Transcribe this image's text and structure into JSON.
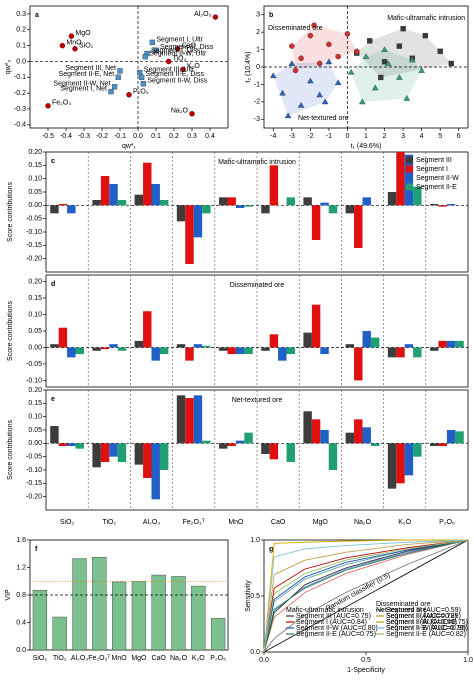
{
  "chart_data": [
    {
      "type": "scatter",
      "panel": "a",
      "xlabel": "qw*₁",
      "ylabel": "qw*₂",
      "xlim": [
        -0.6,
        0.5
      ],
      "ylim": [
        -0.42,
        0.35
      ],
      "xticks": [
        -0.5,
        -0.4,
        -0.3,
        -0.2,
        -0.1,
        {
          "value": 0,
          "label": "0.0"
        },
        0.1,
        0.2,
        0.3,
        0.4
      ],
      "yticks": [
        -0.4,
        -0.3,
        -0.2,
        -0.1,
        {
          "value": 0,
          "label": "0.0"
        },
        0.1,
        0.2,
        0.3
      ],
      "zero_lines": true,
      "series": [
        {
          "color": "#c00000",
          "marker": "circle",
          "labels": [
            "Al₂O₃",
            "MgO",
            "SiO₂",
            "MnO",
            "CaO",
            "TiO₂",
            "K₂O",
            "Na₂O",
            "Fe₂O₃",
            "P₂O₅"
          ],
          "x": [
            0.43,
            -0.37,
            -0.35,
            -0.42,
            0.22,
            0.17,
            0.25,
            0.3,
            -0.5,
            -0.05
          ],
          "values": [
            0.28,
            0.16,
            0.08,
            0.1,
            0.08,
            0.0,
            -0.05,
            -0.33,
            -0.28,
            -0.21
          ]
        },
        {
          "color": "#4a90c8",
          "marker": "square",
          "labels": [
            "Segment I, Ultr",
            "Segment III, Diss",
            "Segment I, Diss",
            "Segment II-W, Ultr",
            "Segment III, Net",
            "Segment II-E, Net",
            "Segment II-W, Net",
            "Segment I, Net",
            "Segment III, Ultr",
            "Segment II-E, Diss",
            "Segment II-W, Diss"
          ],
          "x": [
            0.08,
            0.1,
            0.05,
            0.04,
            -0.1,
            -0.11,
            -0.13,
            -0.15,
            0.01,
            0.02,
            0.03
          ],
          "values": [
            0.12,
            0.07,
            0.05,
            0.03,
            -0.06,
            -0.1,
            -0.16,
            -0.19,
            -0.07,
            -0.1,
            -0.14
          ]
        }
      ]
    },
    {
      "type": "scatter",
      "panel": "b",
      "xlabel": "t₁ (49.6%)",
      "ylabel": "t₂ (10.4%)",
      "xlim": [
        -4.5,
        6.5
      ],
      "ylim": [
        -3.5,
        3.5
      ],
      "xticks": [
        -4,
        -3,
        -2,
        -1,
        0,
        1,
        2,
        3,
        4,
        5,
        6
      ],
      "yticks": [
        -3,
        -2,
        -1,
        0,
        1,
        2,
        3
      ],
      "zero_lines": true,
      "hulls": true,
      "annotations": [
        {
          "text": "Disseminated ore",
          "color": "#d03020"
        },
        {
          "text": "Mafic-ultramafic intrusion",
          "color": "#2a9a50"
        },
        {
          "text": "Net-textured ore",
          "color": "#2f6fc0"
        }
      ],
      "series": [
        {
          "color": "#3a3a3a",
          "marker": "square",
          "x": [
            0.5,
            1.2,
            2.0,
            2.8,
            3.5,
            4.2,
            5.0,
            5.6,
            1.8,
            3.0
          ],
          "values": [
            0.8,
            1.5,
            0.3,
            1.2,
            0.5,
            1.8,
            0.9,
            0.2,
            -0.6,
            2.2
          ]
        },
        {
          "color": "#d03030",
          "marker": "circle",
          "x": [
            -3,
            -2.5,
            -2,
            -1.5,
            -1,
            -0.5,
            0,
            -2.8,
            -1.8,
            0.5
          ],
          "values": [
            1.2,
            0.5,
            1.8,
            0.2,
            1.3,
            0.6,
            1.9,
            -0.2,
            2.4,
            0.9
          ]
        },
        {
          "color": "#3060c0",
          "marker": "triangle",
          "x": [
            -4,
            -3.5,
            -3,
            -2.5,
            -2,
            -1.5,
            -1,
            -0.5,
            -3.2,
            -1.2
          ],
          "values": [
            -0.5,
            -1.5,
            0.2,
            -2.2,
            -0.8,
            -1.6,
            0.3,
            -0.9,
            -2.8,
            -2.0
          ]
        },
        {
          "color": "#30a070",
          "marker": "triangle",
          "x": [
            0.2,
            1,
            1.5,
            2.2,
            2.8,
            3.5,
            4,
            0.8,
            2,
            3.2
          ],
          "values": [
            -0.3,
            0.6,
            -1.2,
            0.2,
            -0.6,
            0.4,
            -0.2,
            -2.0,
            1.0,
            -1.8
          ]
        }
      ]
    },
    {
      "type": "bar",
      "panel": "c",
      "title": "Mafic-ultramafic intrusion",
      "ylabel": "Score contributions",
      "ylim": [
        -0.25,
        0.2
      ],
      "separators": true,
      "zero_line": true,
      "yticks": [
        {
          "value": 0.2,
          "label": "0.20"
        },
        0.15,
        {
          "value": 0.1,
          "label": "0.10"
        },
        0.05,
        {
          "value": 0,
          "label": "0.00"
        },
        -0.05,
        {
          "value": -0.1,
          "label": "-0.10"
        },
        -0.15,
        {
          "value": -0.2,
          "label": "-0.20"
        }
      ],
      "series": [
        {
          "name": "Segment III",
          "color": "#3d3d3d",
          "values": [
            -0.03,
            0.02,
            0.04,
            -0.06,
            0.03,
            -0.03,
            0.03,
            -0.03,
            0.05,
            0.005
          ]
        },
        {
          "name": "Segment I",
          "color": "#e01010",
          "values": [
            0.005,
            0.11,
            0.16,
            -0.22,
            0.03,
            0.15,
            -0.13,
            -0.16,
            0.2,
            -0.005
          ]
        },
        {
          "name": "Segment II-W",
          "color": "#1f5fc8",
          "values": [
            -0.03,
            0.08,
            0.08,
            -0.12,
            -0.01,
            0.0,
            0.01,
            0.03,
            0.19,
            0.005
          ]
        },
        {
          "name": "Segment II-E",
          "color": "#20a070",
          "values": [
            0.0,
            0.02,
            0.02,
            -0.03,
            -0.005,
            0.03,
            -0.03,
            0.0,
            0.07,
            0.0
          ]
        }
      ]
    },
    {
      "type": "bar",
      "panel": "d",
      "title": "Disseminated ore",
      "ylabel": "Score contributions",
      "ylim": [
        -0.12,
        0.22
      ],
      "separators": true,
      "zero_line": true,
      "yticks": [
        {
          "value": 0.2,
          "label": "0.20"
        },
        0.15,
        {
          "value": 0.1,
          "label": "0.10"
        },
        0.05,
        {
          "value": 0,
          "label": "0.00"
        },
        -0.05,
        {
          "value": -0.1,
          "label": "-0.10"
        }
      ],
      "series": [
        {
          "color": "#3d3d3d",
          "values": [
            0.01,
            -0.01,
            0.02,
            0.01,
            -0.01,
            -0.01,
            0.045,
            0.01,
            -0.03,
            -0.01
          ]
        },
        {
          "color": "#e01010",
          "values": [
            0.06,
            -0.005,
            0.11,
            -0.04,
            -0.02,
            0.04,
            0.13,
            -0.1,
            -0.03,
            0.02
          ]
        },
        {
          "color": "#1f5fc8",
          "values": [
            -0.03,
            0.01,
            -0.04,
            0.01,
            -0.02,
            -0.04,
            -0.02,
            0.05,
            0.01,
            0.02
          ]
        },
        {
          "color": "#20a070",
          "values": [
            -0.02,
            -0.01,
            -0.02,
            0.005,
            -0.02,
            -0.02,
            0.0,
            0.03,
            -0.03,
            0.02
          ]
        }
      ]
    },
    {
      "type": "bar",
      "panel": "e",
      "title": "Net-textured ore",
      "ylabel": "Score contributions",
      "ylim": [
        -0.25,
        0.2
      ],
      "separators": true,
      "zero_line": true,
      "yticks": [
        {
          "value": 0.2,
          "label": "0.20"
        },
        0.15,
        {
          "value": 0.1,
          "label": "0.10"
        },
        0.05,
        {
          "value": 0,
          "label": "0.00"
        },
        -0.05,
        {
          "value": -0.1,
          "label": "-0.10"
        },
        -0.15,
        {
          "value": -0.2,
          "label": "-0.20"
        }
      ],
      "categories": [
        "SiO₂",
        "TiO₂",
        "Al₂O₃",
        "Fe₂O₃ᵀ",
        "MnO",
        "CaO",
        "MgO",
        "Na₂O",
        "K₂O",
        "P₂O₅"
      ],
      "series": [
        {
          "color": "#3d3d3d",
          "values": [
            0.065,
            -0.09,
            -0.08,
            0.18,
            -0.02,
            -0.04,
            0.12,
            0.04,
            -0.17,
            -0.01
          ]
        },
        {
          "color": "#e01010",
          "values": [
            -0.01,
            -0.07,
            -0.13,
            0.17,
            -0.01,
            -0.06,
            0.09,
            0.09,
            -0.15,
            -0.01
          ]
        },
        {
          "color": "#1f5fc8",
          "values": [
            -0.01,
            -0.05,
            -0.21,
            0.18,
            0.01,
            0.0,
            0.05,
            0.06,
            -0.12,
            0.05
          ]
        },
        {
          "color": "#20a070",
          "values": [
            -0.02,
            -0.07,
            -0.1,
            0.01,
            0.04,
            -0.07,
            -0.1,
            -0.01,
            -0.05,
            0.045
          ]
        }
      ]
    },
    {
      "type": "bar",
      "panel": "f",
      "ylabel": "VIP",
      "ylim": [
        0,
        1.6
      ],
      "yticks": [
        {
          "value": 0,
          "label": "0.0"
        },
        0.4,
        0.8,
        1.2,
        1.6
      ],
      "categories": [
        "SiO₂",
        "TiO₂",
        "Al₂O₃",
        "Fe₂O₃ᵀ",
        "MnO",
        "MgO",
        "CaO",
        "Na₂O",
        "K₂O",
        "P₂O₅"
      ],
      "values": [
        0.87,
        0.48,
        1.33,
        1.35,
        0.99,
        1.0,
        1.09,
        1.07,
        0.93,
        0.46
      ],
      "color": "#7cc08e",
      "reference_lines": [
        {
          "value": 1.0,
          "color": "#e08000",
          "style": "dotted"
        },
        {
          "value": 0.8,
          "color": "#000000",
          "style": "dashed"
        }
      ]
    },
    {
      "type": "line",
      "panel": "g",
      "xlabel": "1-Specificity",
      "ylabel": "Sensitivity",
      "xlim": [
        0,
        1
      ],
      "ylim": [
        0,
        1
      ],
      "xticks": [
        {
          "value": 0,
          "label": "0.0"
        },
        0.5,
        {
          "value": 1,
          "label": "1.0"
        }
      ],
      "yticks": [
        {
          "value": 0,
          "label": "0.0"
        },
        0.5,
        {
          "value": 1,
          "label": "1.0"
        }
      ],
      "diagonal_label": "Random classifier (0.5)",
      "x": [
        0,
        0.05,
        0.2,
        0.4,
        0.7,
        1
      ],
      "groups": [
        {
          "title": "Disseminated ore",
          "series": [
            {
              "name": "Segment III (AUC=0.59)",
              "color": "#777777",
              "values": [
                0,
                0.12,
                0.33,
                0.53,
                0.78,
                1
              ]
            },
            {
              "name": "Segment I (AUC=0.72)",
              "color": "#e07070",
              "values": [
                0,
                0.31,
                0.53,
                0.7,
                0.87,
                1
              ]
            },
            {
              "name": "Segment II-W (AUC=0.75)",
              "color": "#7090d8",
              "values": [
                0,
                0.37,
                0.58,
                0.74,
                0.89,
                1
              ]
            },
            {
              "name": "Segment II-E (AUC=0.79)",
              "color": "#60b0a0",
              "values": [
                0,
                0.45,
                0.65,
                0.78,
                0.91,
                1
              ]
            }
          ]
        },
        {
          "title": "Mafic-ultramafic intrusion",
          "series": [
            {
              "name": "Segment III (AUC=0.75)",
              "color": "#333333",
              "values": [
                0,
                0.35,
                0.6,
                0.75,
                0.9,
                1
              ]
            },
            {
              "name": "Segment I (AUC=0.84)",
              "color": "#c00000",
              "values": [
                0,
                0.57,
                0.74,
                0.84,
                0.93,
                1
              ]
            },
            {
              "name": "Segment II-W (AUC=0.80)",
              "color": "#2050c0",
              "values": [
                0,
                0.47,
                0.67,
                0.8,
                0.91,
                1
              ]
            },
            {
              "name": "Segment II-E (AUC=0.75)",
              "color": "#208060",
              "values": [
                0,
                0.38,
                0.57,
                0.73,
                0.88,
                1
              ]
            }
          ]
        },
        {
          "title": "Net-textured ore",
          "series": [
            {
              "name": "Segment III (AUC=0.89)",
              "color": "#c0a050",
              "values": [
                0,
                0.69,
                0.82,
                0.89,
                0.96,
                1
              ]
            },
            {
              "name": "Segment I (AUC=0.99)",
              "color": "#d4b000",
              "values": [
                0,
                0.97,
                0.98,
                0.99,
                1,
                1
              ]
            },
            {
              "name": "Segment II-W (AUC=0.95)",
              "color": "#80c0e0",
              "values": [
                0,
                0.85,
                0.92,
                0.95,
                0.98,
                1
              ]
            },
            {
              "name": "Segment II-E (AUC=0.82)",
              "color": "#90c060",
              "values": [
                0,
                0.52,
                0.7,
                0.82,
                0.92,
                1
              ]
            }
          ]
        }
      ]
    }
  ]
}
